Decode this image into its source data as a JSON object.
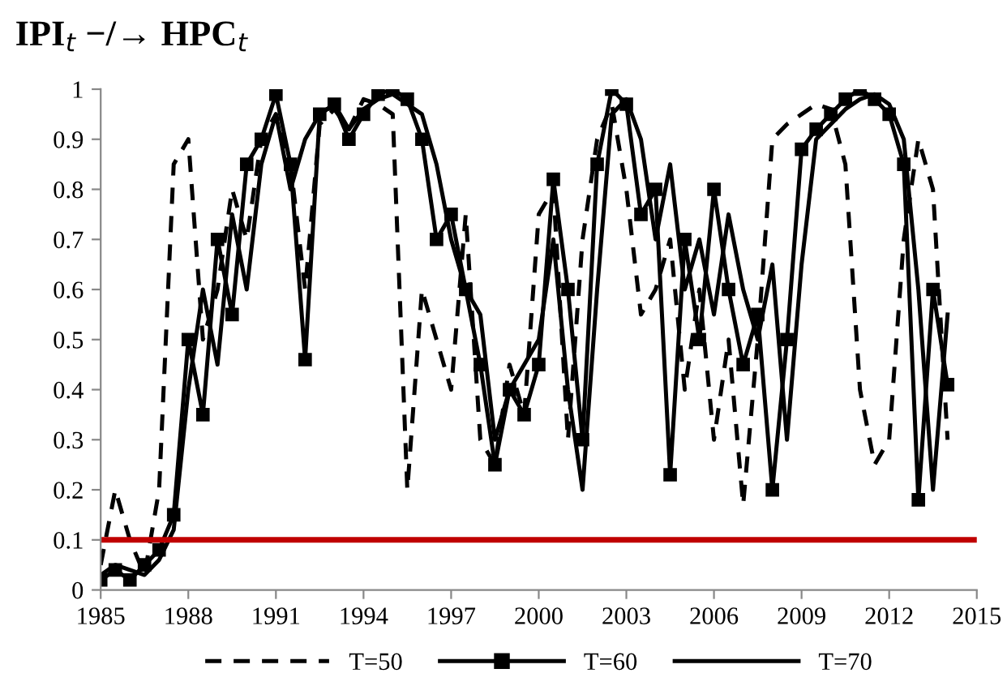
{
  "chart_data": {
    "type": "line",
    "title": "IPI$_{t}$ −/→ HPC$_{t}$",
    "x": [
      1985.0,
      1985.5,
      1986.0,
      1986.5,
      1987.0,
      1987.5,
      1988.0,
      1988.5,
      1989.0,
      1989.5,
      1990.0,
      1990.5,
      1991.0,
      1991.5,
      1992.0,
      1992.5,
      1993.0,
      1993.5,
      1994.0,
      1994.5,
      1995.0,
      1995.5,
      1996.0,
      1996.5,
      1997.0,
      1997.5,
      1998.0,
      1998.5,
      1999.0,
      1999.5,
      2000.0,
      2000.5,
      2001.0,
      2001.5,
      2002.0,
      2002.5,
      2003.0,
      2003.5,
      2004.0,
      2004.5,
      2005.0,
      2005.5,
      2006.0,
      2006.5,
      2007.0,
      2007.5,
      2008.0,
      2008.5,
      2009.0,
      2009.5,
      2010.0,
      2010.5,
      2011.0,
      2011.5,
      2012.0,
      2012.5,
      2013.0,
      2013.5,
      2014.0
    ],
    "series": [
      {
        "name": "T=50",
        "color": "#000000",
        "line_style": "dashed",
        "marker": "none",
        "values": [
          0.05,
          0.2,
          0.1,
          0.03,
          0.2,
          0.85,
          0.9,
          0.5,
          0.6,
          0.8,
          0.7,
          0.9,
          0.95,
          0.85,
          0.6,
          0.93,
          0.96,
          0.92,
          0.98,
          0.97,
          0.95,
          0.2,
          0.6,
          0.5,
          0.4,
          0.75,
          0.3,
          0.25,
          0.45,
          0.35,
          0.75,
          0.8,
          0.3,
          0.7,
          0.9,
          0.97,
          0.8,
          0.55,
          0.6,
          0.7,
          0.4,
          0.6,
          0.3,
          0.5,
          0.17,
          0.5,
          0.9,
          0.93,
          0.95,
          0.97,
          0.96,
          0.85,
          0.4,
          0.25,
          0.3,
          0.7,
          0.9,
          0.8,
          0.3
        ]
      },
      {
        "name": "T=60",
        "color": "#000000",
        "line_style": "solid",
        "marker": "square",
        "values": [
          0.02,
          0.04,
          0.02,
          0.05,
          0.08,
          0.15,
          0.5,
          0.35,
          0.7,
          0.55,
          0.85,
          0.9,
          0.99,
          0.85,
          0.46,
          0.95,
          0.97,
          0.9,
          0.95,
          0.99,
          1.0,
          0.98,
          0.9,
          0.7,
          0.75,
          0.6,
          0.45,
          0.25,
          0.4,
          0.35,
          0.45,
          0.82,
          0.6,
          0.3,
          0.85,
          1.0,
          0.97,
          0.75,
          0.8,
          0.23,
          0.7,
          0.5,
          0.8,
          0.6,
          0.45,
          0.55,
          0.2,
          0.5,
          0.88,
          0.92,
          0.95,
          0.98,
          1.0,
          0.98,
          0.95,
          0.85,
          0.18,
          0.6,
          0.41
        ]
      },
      {
        "name": "T=70",
        "color": "#000000",
        "line_style": "solid",
        "marker": "none",
        "values": [
          0.03,
          0.05,
          0.04,
          0.03,
          0.06,
          0.12,
          0.4,
          0.6,
          0.45,
          0.75,
          0.6,
          0.85,
          0.95,
          0.8,
          0.9,
          0.95,
          0.97,
          0.92,
          0.96,
          0.98,
          0.99,
          0.97,
          0.95,
          0.85,
          0.7,
          0.6,
          0.55,
          0.3,
          0.4,
          0.45,
          0.5,
          0.7,
          0.4,
          0.2,
          0.6,
          0.95,
          0.98,
          0.9,
          0.7,
          0.85,
          0.6,
          0.7,
          0.55,
          0.75,
          0.6,
          0.5,
          0.65,
          0.3,
          0.65,
          0.9,
          0.93,
          0.96,
          0.98,
          0.99,
          0.97,
          0.9,
          0.6,
          0.2,
          0.55
        ]
      }
    ],
    "ref_lines": [
      {
        "axis": "y",
        "value": 0.1,
        "color": "#c00000",
        "line_style": "solid"
      }
    ],
    "xlim": [
      1985,
      2015
    ],
    "xticks": [
      1985,
      1988,
      1991,
      1994,
      1997,
      2000,
      2003,
      2006,
      2009,
      2012,
      2015
    ],
    "ylim": [
      0,
      1
    ],
    "yticks": [
      0,
      0.1,
      0.2,
      0.3,
      0.4,
      0.5,
      0.6,
      0.7,
      0.8,
      0.9,
      1
    ],
    "grid": false,
    "legend": "bottom"
  }
}
